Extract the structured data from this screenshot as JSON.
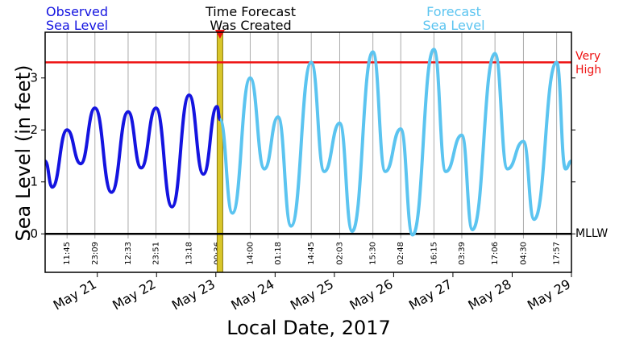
{
  "chart_data": {
    "type": "line",
    "xlabel": "Local Date, 2017",
    "ylabel": "Sea Level (in feet)",
    "xlim": [
      20.12,
      29.0
    ],
    "ylim": [
      -0.74,
      3.88
    ],
    "yticks": [
      0,
      1,
      2,
      3
    ],
    "xticks": [
      {
        "value": 21,
        "label": "May 21"
      },
      {
        "value": 22,
        "label": "May 22"
      },
      {
        "value": 23,
        "label": "May 23"
      },
      {
        "value": 24,
        "label": "May 24"
      },
      {
        "value": 25,
        "label": "May 25"
      },
      {
        "value": 26,
        "label": "May 26"
      },
      {
        "value": 27,
        "label": "May 27"
      },
      {
        "value": 28,
        "label": "May 28"
      },
      {
        "value": 29,
        "label": "May 29"
      }
    ],
    "series": [
      {
        "name": "Observed\nSea Level",
        "color": "#1414e0",
        "x": [
          20.12,
          20.24,
          20.49,
          20.72,
          20.96,
          21.24,
          21.52,
          21.74,
          21.99,
          22.26,
          22.55,
          22.79,
          23.02,
          23.07
        ],
        "values": [
          1.4,
          0.9,
          2.0,
          1.35,
          2.42,
          0.8,
          2.35,
          1.27,
          2.42,
          0.52,
          2.67,
          1.15,
          2.45,
          2.2
        ]
      },
      {
        "name": "Forecast\nSea Level",
        "color": "#5bc4f0",
        "x": [
          23.07,
          23.28,
          23.58,
          23.82,
          24.05,
          24.27,
          24.61,
          24.83,
          25.09,
          25.3,
          25.65,
          25.86,
          26.12,
          26.32,
          26.68,
          26.88,
          27.15,
          27.33,
          27.71,
          27.92,
          28.19,
          28.37,
          28.75,
          28.9,
          29.0
        ],
        "values": [
          2.2,
          0.4,
          3.0,
          1.25,
          2.25,
          0.15,
          3.3,
          1.2,
          2.13,
          0.05,
          3.5,
          1.2,
          2.02,
          -0.02,
          3.55,
          1.2,
          1.9,
          0.08,
          3.47,
          1.25,
          1.78,
          0.28,
          3.3,
          1.25,
          1.4
        ]
      }
    ],
    "tide_times": {
      "x": [
        20.49,
        20.96,
        21.52,
        21.99,
        22.55,
        23.025,
        23.58,
        24.05,
        24.61,
        25.09,
        25.65,
        26.12,
        26.68,
        27.15,
        27.71,
        28.19,
        28.75
      ],
      "labels": [
        "11:45",
        "23:09",
        "12:33",
        "23:51",
        "13:18",
        "00:36",
        "14:00",
        "01:18",
        "14:45",
        "02:03",
        "15:30",
        "02:48",
        "16:15",
        "03:39",
        "17:06",
        "04:30",
        "17:57"
      ]
    },
    "forecast_created": {
      "x": 23.07,
      "label": "Time Forecast\nWas Created"
    },
    "reference_lines": [
      {
        "value": 3.3,
        "label": "Very\nHigh",
        "color": "#ee1111"
      },
      {
        "value": 0,
        "label": "MLLW",
        "color": "#000000"
      }
    ]
  }
}
